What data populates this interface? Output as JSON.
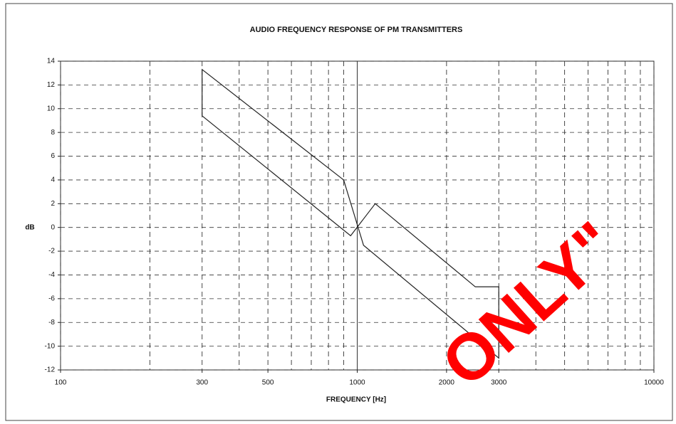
{
  "chart_data": {
    "type": "line",
    "title": "AUDIO FREQUENCY RESPONSE OF PM TRANSMITTERS",
    "xlabel": "FREQUENCY [Hz]",
    "ylabel": "dB",
    "annotation": "ONLY\"",
    "xscale": "log",
    "xlim": [
      100,
      10000
    ],
    "ylim": [
      -12,
      14
    ],
    "xticks": [
      100,
      300,
      500,
      1000,
      2000,
      3000,
      10000
    ],
    "xgrid": [
      200,
      400,
      600,
      700,
      800,
      900,
      4000,
      5000,
      6000,
      7000,
      8000,
      9000
    ],
    "yticks": [
      -12,
      -10,
      -8,
      -6,
      -4,
      -2,
      0,
      2,
      4,
      6,
      8,
      10,
      12,
      14
    ],
    "grid": true,
    "series": [
      {
        "color": "#222",
        "x": [
          300,
          300,
          900,
          1050,
          3000,
          3000,
          2500,
          1150,
          950,
          300
        ],
        "values": [
          9.4,
          13.3,
          4,
          -1.5,
          -11,
          -5,
          -5,
          2,
          -0.7,
          9.4
        ]
      }
    ]
  }
}
